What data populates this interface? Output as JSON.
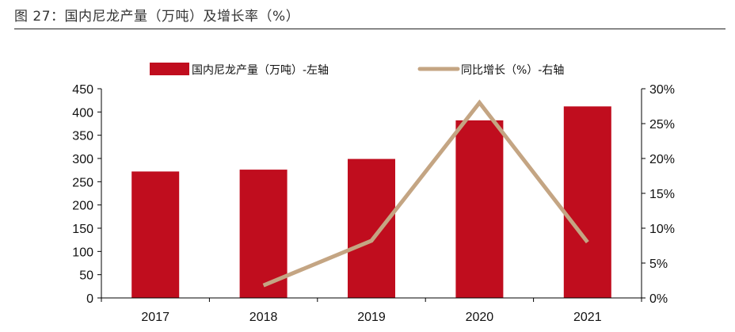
{
  "figure": {
    "title": "图 27：国内尼龙产量（万吨）及增长率（%）"
  },
  "colors": {
    "bar": "#c00d1e",
    "line": "#c4a583",
    "axis": "#000000"
  },
  "chart_data": {
    "type": "bar",
    "categories": [
      "2017",
      "2018",
      "2019",
      "2020",
      "2021"
    ],
    "series": [
      {
        "name": "国内尼龙产量（万吨）-左轴",
        "type": "bar",
        "axis": "left",
        "values": [
          272,
          276,
          299,
          382,
          412
        ]
      },
      {
        "name": "同比增长（%）-右轴",
        "type": "line",
        "axis": "right",
        "values": [
          null,
          1.8,
          8.2,
          28.0,
          8.0
        ]
      }
    ],
    "ylim_left": [
      0,
      450
    ],
    "yticks_left": [
      "0",
      "50",
      "100",
      "150",
      "200",
      "250",
      "300",
      "350",
      "400",
      "450"
    ],
    "ylim_right": [
      0,
      30
    ],
    "yticks_right": [
      "0%",
      "5%",
      "10%",
      "15%",
      "20%",
      "25%",
      "30%"
    ],
    "legend_position": "top",
    "grid": false
  }
}
